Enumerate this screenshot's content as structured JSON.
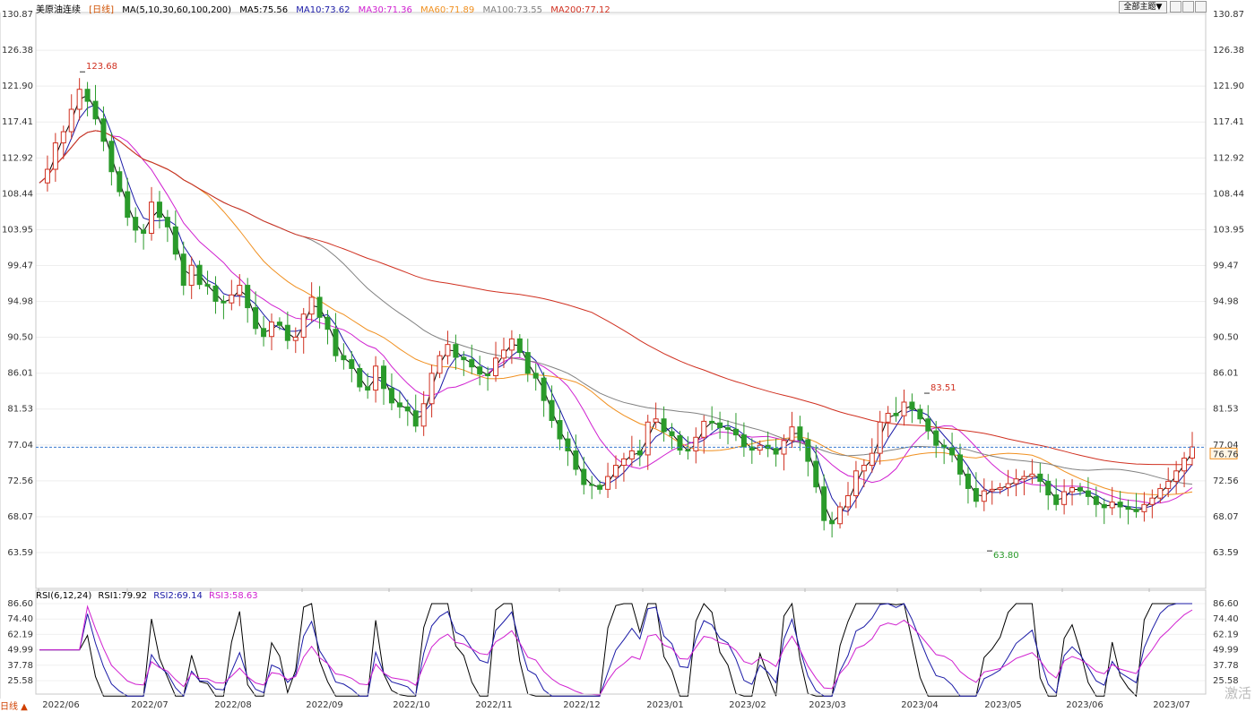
{
  "header": {
    "symbol": "美原油连续",
    "period": "[日线]",
    "ma_indicator": "MA(5,10,30,60,100,200)",
    "ma_values": [
      {
        "label": "MA5:75.56",
        "color": "#000000"
      },
      {
        "label": "MA10:73.62",
        "color": "#1a1aa6"
      },
      {
        "label": "MA30:71.36",
        "color": "#d020d0"
      },
      {
        "label": "MA60:71.89",
        "color": "#f09020"
      },
      {
        "label": "MA100:73.55",
        "color": "#808080"
      },
      {
        "label": "MA200:77.12",
        "color": "#d03020"
      }
    ],
    "theme_button": "全部主题▼"
  },
  "rsi_header": {
    "indicator": "RSI(6,12,24)",
    "values": [
      {
        "label": "RSI1:79.92",
        "color": "#000000"
      },
      {
        "label": "RSI2:69.14",
        "color": "#1a1aa6"
      },
      {
        "label": "RSI3:58.63",
        "color": "#d020d0"
      }
    ]
  },
  "footer": {
    "period_tag": "日线 ▲",
    "watermark": "激活"
  },
  "chart_data": [
    {
      "type": "candlestick",
      "title": "美原油连续 [日线]",
      "y_ticks": [
        130.87,
        126.38,
        121.9,
        117.41,
        112.92,
        108.44,
        103.95,
        99.47,
        94.98,
        90.5,
        86.01,
        81.53,
        77.04,
        72.56,
        68.07,
        63.59
      ],
      "ylim": [
        63.59,
        130.87
      ],
      "x_ticks": [
        "2022/06",
        "2022/07",
        "2022/08",
        "2022/09",
        "2022/10",
        "2022/11",
        "2022/12",
        "2023/01",
        "2023/02",
        "2023/03",
        "2023/04",
        "2023/05",
        "2023/06",
        "2023/07"
      ],
      "annotations": [
        {
          "text": "123.68",
          "date": "2022/06",
          "value": 123.68,
          "type": "high"
        },
        {
          "text": "83.51",
          "date": "2023/04",
          "value": 83.51,
          "type": "high"
        },
        {
          "text": "63.80",
          "date": "2023/03",
          "value": 63.8,
          "type": "low"
        }
      ],
      "current_price_line": 76.76,
      "price_label": "76.76",
      "close_path": [
        109.8,
        111.5,
        114.8,
        116.2,
        119.0,
        121.5,
        120.0,
        117.8,
        115.0,
        111.2,
        108.7,
        105.5,
        103.9,
        103.5,
        107.4,
        105.5,
        104.3,
        100.9,
        97.0,
        99.5,
        97.1,
        96.9,
        95.0,
        94.8,
        95.8,
        97.0,
        94.2,
        91.6,
        90.6,
        92.4,
        92.0,
        90.1,
        90.5,
        93.4,
        95.5,
        93.0,
        91.5,
        88.2,
        87.7,
        86.6,
        84.3,
        83.9,
        86.9,
        84.1,
        82.3,
        81.8,
        81.3,
        79.4,
        82.2,
        86.0,
        88.2,
        89.6,
        88.0,
        87.7,
        86.8,
        85.9,
        85.7,
        87.9,
        88.9,
        90.3,
        88.6,
        86.0,
        85.4,
        82.6,
        80.1,
        77.8,
        76.3,
        74.0,
        72.1,
        72.0,
        71.5,
        73.1,
        74.5,
        75.3,
        76.3,
        75.8,
        79.9,
        80.3,
        78.7,
        78.2,
        76.4,
        76.3,
        78.0,
        80.0,
        79.8,
        79.2,
        79.0,
        78.3,
        76.8,
        76.4,
        77.0,
        76.6,
        75.9,
        77.6,
        79.3,
        77.7,
        75.0,
        71.8,
        67.6,
        67.2,
        69.3,
        70.7,
        73.8,
        74.5,
        76.0,
        79.9,
        81.0,
        80.7,
        82.4,
        81.5,
        80.3,
        78.8,
        77.0,
        76.7,
        75.8,
        73.4,
        71.6,
        70.0,
        71.3,
        71.5,
        71.7,
        72.2,
        72.8,
        73.1,
        73.4,
        72.5,
        70.8,
        69.6,
        71.2,
        71.7,
        71.3,
        70.6,
        69.6,
        69.2,
        69.9,
        69.3,
        69.0,
        68.7,
        69.6,
        70.4,
        71.6,
        72.5,
        73.8,
        75.4,
        76.8
      ],
      "moving_averages": [
        {
          "name": "MA5",
          "value": 75.56,
          "color": "#000000"
        },
        {
          "name": "MA10",
          "value": 73.62,
          "color": "#1a1aa6"
        },
        {
          "name": "MA30",
          "value": 71.36,
          "color": "#d020d0"
        },
        {
          "name": "MA60",
          "value": 71.89,
          "color": "#f09020"
        },
        {
          "name": "MA100",
          "value": 73.55,
          "color": "#808080"
        },
        {
          "name": "MA200",
          "value": 77.12,
          "color": "#d03020"
        }
      ],
      "up_color": "#d03020",
      "down_color": "#2a9a2a"
    },
    {
      "type": "line",
      "title": "RSI(6,12,24)",
      "y_ticks": [
        86.6,
        74.4,
        62.19,
        49.99,
        37.78,
        25.58
      ],
      "ylim": [
        13.38,
        86.6
      ],
      "x_ticks": [
        "2022/06",
        "2022/07",
        "2022/08",
        "2022/09",
        "2022/10",
        "2022/11",
        "2022/12",
        "2023/01",
        "2023/02",
        "2023/03",
        "2023/04",
        "2023/05",
        "2023/06",
        "2023/07"
      ],
      "series": [
        {
          "name": "RSI1",
          "value": 79.92,
          "color": "#000000"
        },
        {
          "name": "RSI2",
          "value": 69.14,
          "color": "#1a1aa6"
        },
        {
          "name": "RSI3",
          "value": 58.63,
          "color": "#d020d0"
        }
      ]
    }
  ]
}
